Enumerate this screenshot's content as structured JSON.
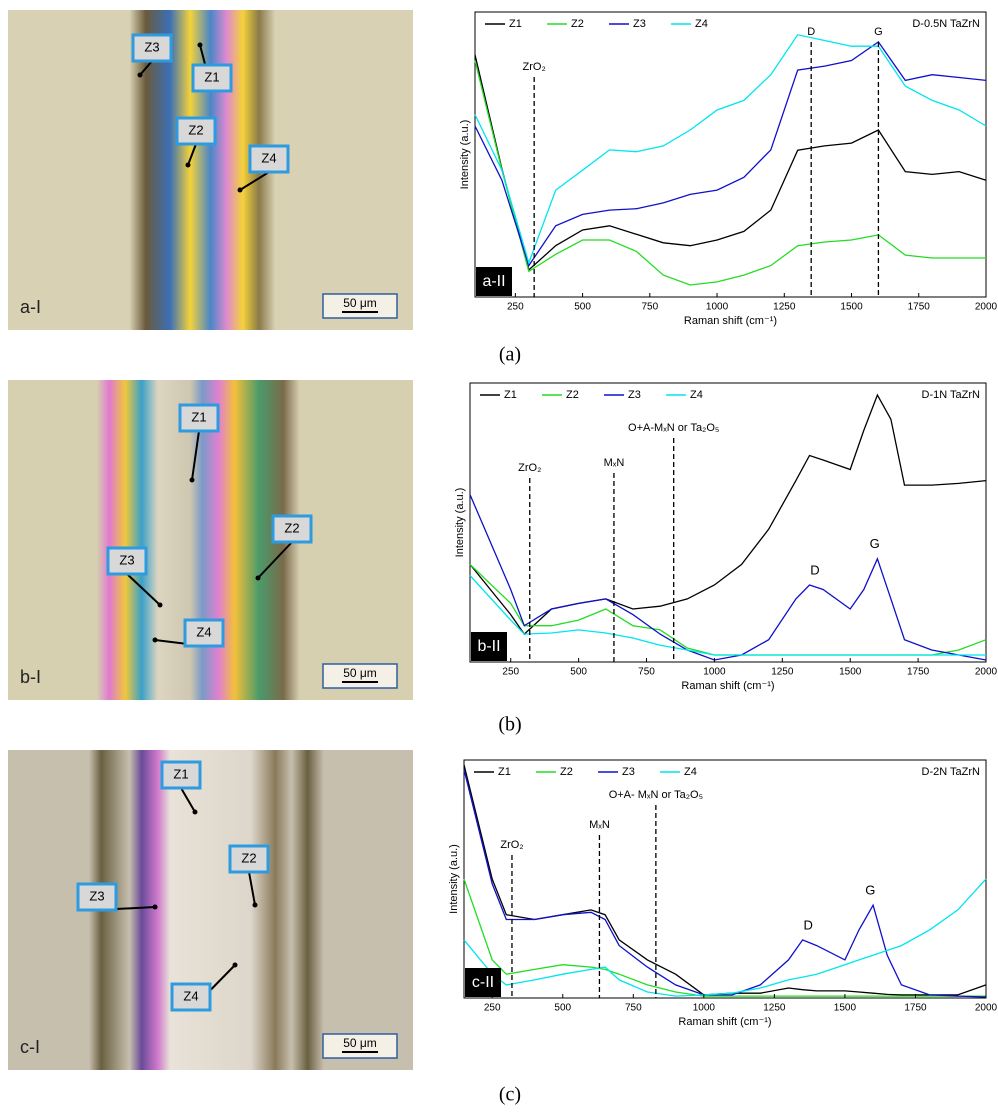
{
  "chart_data": [
    {
      "type": "line",
      "title": "D-0.5N TaZrN",
      "panel_label": "a-II",
      "xlabel": "Raman shift (cm⁻¹)",
      "ylabel": "Intensity (a.u.)",
      "x": [
        100,
        200,
        300,
        400,
        500,
        600,
        700,
        800,
        900,
        1000,
        1100,
        1200,
        1300,
        1400,
        1500,
        1600,
        1700,
        1800,
        1900,
        2000
      ],
      "xlim": [
        100,
        2000
      ],
      "xticks": [
        250,
        500,
        750,
        1000,
        1250,
        1500,
        1750,
        2000
      ],
      "ylim": [
        0,
        100
      ],
      "legend": "top-left",
      "series": [
        {
          "name": "Z1",
          "color": "#000000",
          "values": [
            85,
            45,
            9.5,
            18,
            23.5,
            25,
            22,
            19,
            18,
            20,
            23,
            30.5,
            51.5,
            53,
            54,
            58.6,
            44,
            43,
            44,
            41
          ]
        },
        {
          "name": "Z2",
          "color": "#22dd22",
          "values": [
            83,
            44.5,
            9,
            15,
            20,
            20,
            16,
            7.7,
            4.2,
            5.3,
            7.7,
            11,
            18,
            19.3,
            20,
            21.8,
            14.7,
            13.7,
            13.7,
            13.7
          ]
        },
        {
          "name": "Z3",
          "color": "#1010cc",
          "values": [
            60,
            41,
            11,
            25,
            29,
            30.5,
            31,
            33,
            36,
            37.5,
            42,
            51.6,
            79.6,
            81,
            83,
            89.5,
            76,
            78,
            77,
            76
          ]
        },
        {
          "name": "Z4",
          "color": "#00e5ee",
          "values": [
            64,
            44.5,
            12,
            37.5,
            44.5,
            51.6,
            51,
            53,
            58.6,
            65.6,
            69,
            78,
            92,
            90,
            88,
            88,
            74,
            69,
            65.6,
            60
          ]
        }
      ],
      "annotations": [
        {
          "text": "ZrO₂",
          "x": 320,
          "dashed_line": true
        },
        {
          "text": "D",
          "x": 1350,
          "dashed_line": true
        },
        {
          "text": "G",
          "x": 1600,
          "dashed_line": true
        }
      ]
    },
    {
      "type": "line",
      "title": "D-1N TaZrN",
      "panel_label": "b-II",
      "xlabel": "Raman shift (cm⁻¹)",
      "ylabel": "Intensity (a.u.)",
      "x": [
        100,
        250,
        300,
        400,
        500,
        600,
        700,
        800,
        900,
        1000,
        1100,
        1200,
        1300,
        1350,
        1400,
        1500,
        1550,
        1600,
        1650,
        1700,
        1800,
        1900,
        2000
      ],
      "xlim": [
        100,
        2000
      ],
      "xticks": [
        250,
        500,
        750,
        1000,
        1250,
        1500,
        1750,
        2000
      ],
      "ylim": [
        0,
        100
      ],
      "legend": "top-left",
      "series": [
        {
          "name": "Z1",
          "color": "#000000",
          "values": [
            35,
            17,
            10,
            19,
            21,
            22.6,
            19,
            20,
            22.6,
            27.6,
            35,
            47.6,
            65,
            74,
            72.4,
            69,
            83,
            95.7,
            87,
            63.4,
            63.4,
            64,
            65
          ]
        },
        {
          "name": "Z2",
          "color": "#22dd22",
          "values": [
            35,
            21,
            13,
            13,
            15,
            19,
            13,
            11.5,
            5,
            2.5,
            2.5,
            2.5,
            2.5,
            2.5,
            2.5,
            2.5,
            2.5,
            2.5,
            2.5,
            2.5,
            2.5,
            4.3,
            8
          ]
        },
        {
          "name": "Z3",
          "color": "#1010cc",
          "values": [
            60,
            26,
            13,
            19,
            21,
            22.6,
            17,
            10,
            4.3,
            0.7,
            2.5,
            8,
            22.6,
            27.6,
            26,
            19,
            26,
            37,
            22.6,
            8,
            4.3,
            2.5,
            0.7
          ]
        },
        {
          "name": "Z4",
          "color": "#00e5ee",
          "values": [
            31,
            15,
            10,
            10.4,
            11.5,
            10.4,
            8.6,
            6,
            4.3,
            2.5,
            2.5,
            2.5,
            2.5,
            2.5,
            2.5,
            2.5,
            2.5,
            2.5,
            2.5,
            2.5,
            2.5,
            2.5,
            2.5
          ]
        }
      ],
      "annotations": [
        {
          "text": "ZrO₂",
          "x": 320,
          "dashed_line": true
        },
        {
          "text": "MₓN",
          "x": 630,
          "dashed_line": true
        },
        {
          "text": "O+A-MₓN or Ta₂O₅",
          "x": 850,
          "dashed_line": true
        },
        {
          "text": "D",
          "x": 1370,
          "dashed_line": false
        },
        {
          "text": "G",
          "x": 1590,
          "dashed_line": false
        }
      ]
    },
    {
      "type": "line",
      "title": "D-2N TaZrN",
      "panel_label": "c-II",
      "xlabel": "Raman shift (cm⁻¹)",
      "ylabel": "Intensity (a.u.)",
      "x": [
        150,
        250,
        300,
        400,
        500,
        600,
        650,
        700,
        800,
        900,
        1000,
        1100,
        1200,
        1300,
        1350,
        1400,
        1500,
        1550,
        1600,
        1650,
        1700,
        1800,
        1900,
        2000
      ],
      "xlim": [
        150,
        2000
      ],
      "xticks": [
        250,
        500,
        750,
        1000,
        1250,
        1500,
        1750,
        2000
      ],
      "ylim": [
        0,
        100
      ],
      "legend": "top-left",
      "series": [
        {
          "name": "Z1",
          "color": "#000000",
          "values": [
            98,
            50,
            35,
            33,
            35,
            37,
            35,
            24.4,
            16,
            10,
            1.3,
            2,
            2,
            4.2,
            3.5,
            3,
            3,
            2.5,
            2,
            1.5,
            1.3,
            1.3,
            1.3,
            5.5
          ]
        },
        {
          "name": "Z2",
          "color": "#22dd22",
          "values": [
            50,
            16,
            10,
            12,
            14,
            13,
            12,
            10,
            5.5,
            2.5,
            0.8,
            0.8,
            0.8,
            0.8,
            0.8,
            0.8,
            0.8,
            0.8,
            0.8,
            0.8,
            0.8,
            0.8,
            0.8,
            0.8
          ]
        },
        {
          "name": "Z3",
          "color": "#1010cc",
          "values": [
            96,
            48,
            33,
            33,
            35,
            36,
            33,
            22,
            13,
            5.5,
            1.3,
            1.3,
            5.5,
            16,
            24.4,
            22,
            16,
            28.6,
            39,
            18,
            5.5,
            1.3,
            0.8,
            0.4
          ]
        },
        {
          "name": "Z4",
          "color": "#00e5ee",
          "values": [
            24.4,
            10,
            5.5,
            7.6,
            10,
            12,
            13,
            7.6,
            2.5,
            0.8,
            1.3,
            2,
            4.2,
            7.6,
            8.8,
            10,
            14,
            16,
            18,
            20,
            22,
            28.6,
            37,
            50
          ]
        }
      ],
      "annotations": [
        {
          "text": "ZrO₂",
          "x": 320,
          "dashed_line": true
        },
        {
          "text": "MₓN",
          "x": 630,
          "dashed_line": true
        },
        {
          "text": "O+A- MₓN or Ta₂O₅",
          "x": 830,
          "dashed_line": true
        },
        {
          "text": "D",
          "x": 1370,
          "dashed_line": false
        },
        {
          "text": "G",
          "x": 1590,
          "dashed_line": false
        }
      ]
    }
  ],
  "micrographs": [
    {
      "panel": "a-I",
      "zones": [
        "Z1",
        "Z2",
        "Z3",
        "Z4"
      ],
      "scale": "50 μm"
    },
    {
      "panel": "b-I",
      "zones": [
        "Z1",
        "Z2",
        "Z3",
        "Z4"
      ],
      "scale": "50 μm"
    },
    {
      "panel": "c-I",
      "zones": [
        "Z1",
        "Z2",
        "Z3",
        "Z4"
      ],
      "scale": "50 μm"
    }
  ],
  "captions": [
    "(a)",
    "(b)",
    "(c)"
  ]
}
